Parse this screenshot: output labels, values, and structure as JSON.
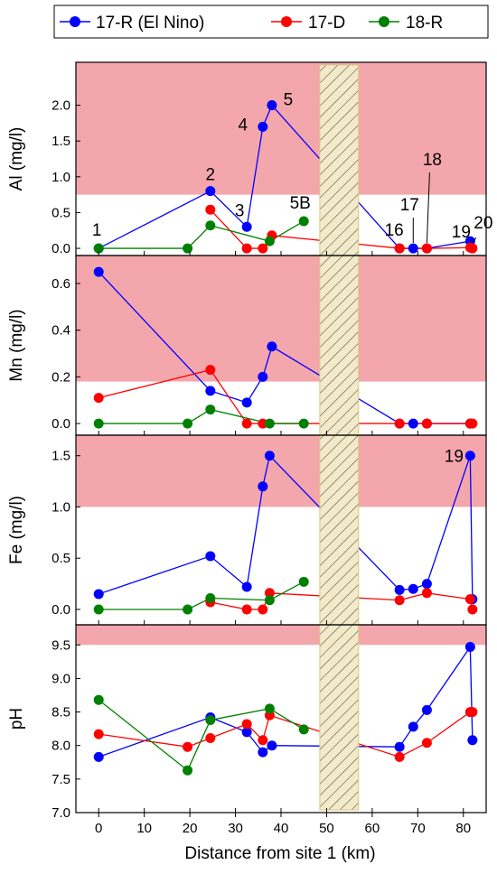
{
  "legend": {
    "items": [
      {
        "label": "17-R (El Nino)",
        "color": "#0000ff"
      },
      {
        "label": "17-D",
        "color": "#ff0000"
      },
      {
        "label": "18-R",
        "color": "#008000"
      }
    ]
  },
  "colors": {
    "exceed_band": "#f4a6ad",
    "hatch_fill": "#f2eac8",
    "hatch_line": "#555555"
  },
  "x_axis": {
    "label": "Distance from site 1 (km)",
    "range": [
      -5,
      85
    ],
    "ticks": [
      0,
      10,
      20,
      30,
      40,
      50,
      60,
      70,
      80
    ],
    "tick_labels": [
      "0",
      "10",
      "20",
      "30",
      "40",
      "50",
      "60",
      "70",
      "80"
    ]
  },
  "hatched_region_km": [
    48.5,
    57
  ],
  "chart_data": [
    {
      "type": "line",
      "panel": "Al",
      "ylabel": "Al (mg/l)",
      "ylim": [
        -0.1,
        2.6
      ],
      "yticks": [
        0.0,
        0.5,
        1.0,
        1.5,
        2.0
      ],
      "ytick_labels": [
        "0.0",
        "0.5",
        "1.0",
        "1.5",
        "2.0"
      ],
      "threshold_band": [
        0.75,
        2.6
      ],
      "series": [
        {
          "name": "17-R (El Nino)",
          "color": "#0000ff",
          "x": [
            0,
            24.5,
            32.5,
            36,
            38,
            66,
            69,
            72,
            81.5
          ],
          "y": [
            0.0,
            0.8,
            0.3,
            1.7,
            2.0,
            0.0,
            0.0,
            0.0,
            0.1
          ]
        },
        {
          "name": "17-D",
          "color": "#ff0000",
          "x": [
            24.5,
            32.5,
            36,
            38,
            66,
            72,
            81.5,
            82
          ],
          "y": [
            0.54,
            0.0,
            0.0,
            0.18,
            0.0,
            0.0,
            0.01,
            0.0
          ]
        },
        {
          "name": "18-R",
          "color": "#008000",
          "x": [
            0,
            19.5,
            24.5,
            37.5,
            45
          ],
          "y": [
            0.0,
            0.0,
            0.32,
            0.1,
            0.38
          ]
        }
      ],
      "annotations": [
        {
          "text": "1",
          "x": 0,
          "y": 0.0
        },
        {
          "text": "2",
          "x": 24.5,
          "y": 0.8
        },
        {
          "text": "3",
          "x": 32.5,
          "y": 0.3
        },
        {
          "text": "4",
          "x": 36,
          "y": 1.7
        },
        {
          "text": "5",
          "x": 38,
          "y": 2.0
        },
        {
          "text": "5B",
          "x": 45,
          "y": 0.38
        },
        {
          "text": "16",
          "x": 66,
          "y": 0.0
        },
        {
          "text": "17",
          "x": 69,
          "y": 0.0
        },
        {
          "text": "18",
          "x": 72,
          "y": 0.0
        },
        {
          "text": "19",
          "x": 81.5,
          "y": 0.1
        },
        {
          "text": "20",
          "x": 82,
          "y": 0.0
        }
      ]
    },
    {
      "type": "line",
      "panel": "Mn",
      "ylabel": "Mn (mg/l)",
      "ylim": [
        -0.05,
        0.72
      ],
      "yticks": [
        0.0,
        0.2,
        0.4,
        0.6
      ],
      "ytick_labels": [
        "0.0",
        "0.2",
        "0.4",
        "0.6"
      ],
      "threshold_band": [
        0.18,
        0.72
      ],
      "series": [
        {
          "name": "17-R (El Nino)",
          "color": "#0000ff",
          "x": [
            0,
            24.5,
            32.5,
            36,
            38,
            66,
            69,
            72,
            81.5
          ],
          "y": [
            0.65,
            0.14,
            0.09,
            0.2,
            0.33,
            0.0,
            0.0,
            0.0,
            0.0
          ]
        },
        {
          "name": "17-D",
          "color": "#ff0000",
          "x": [
            0,
            24.5,
            32.5,
            36,
            66,
            72,
            81.5,
            82
          ],
          "y": [
            0.11,
            0.23,
            0.0,
            0.0,
            0.0,
            0.0,
            0.0,
            0.0
          ]
        },
        {
          "name": "18-R",
          "color": "#008000",
          "x": [
            0,
            19.5,
            24.5,
            37.5,
            45
          ],
          "y": [
            0.0,
            0.0,
            0.06,
            0.0,
            0.0
          ]
        }
      ],
      "annotations": []
    },
    {
      "type": "line",
      "panel": "Fe",
      "ylabel": "Fe (mg/l)",
      "ylim": [
        -0.15,
        1.7
      ],
      "yticks": [
        0.0,
        0.5,
        1.0,
        1.5
      ],
      "ytick_labels": [
        "0.0",
        "0.5",
        "1.0",
        "1.5"
      ],
      "threshold_band": [
        1.0,
        1.7
      ],
      "series": [
        {
          "name": "17-R (El Nino)",
          "color": "#0000ff",
          "x": [
            0,
            24.5,
            32.5,
            36,
            37.5,
            66,
            69,
            72,
            81.5,
            82
          ],
          "y": [
            0.15,
            0.52,
            0.22,
            1.2,
            1.5,
            0.19,
            0.2,
            0.25,
            1.5,
            0.1
          ]
        },
        {
          "name": "17-D",
          "color": "#ff0000",
          "x": [
            24.5,
            32.5,
            36,
            37.5,
            66,
            72,
            81.5,
            82
          ],
          "y": [
            0.07,
            0.0,
            0.0,
            0.16,
            0.09,
            0.16,
            0.1,
            0.0
          ]
        },
        {
          "name": "18-R",
          "color": "#008000",
          "x": [
            0,
            19.5,
            24.5,
            37.5,
            45
          ],
          "y": [
            0.0,
            0.0,
            0.11,
            0.09,
            0.27
          ]
        }
      ],
      "annotations": [
        {
          "text": "19",
          "x": 81.5,
          "y": 1.5
        }
      ]
    },
    {
      "type": "line",
      "panel": "pH",
      "ylabel": "pH",
      "ylim": [
        7.0,
        9.8
      ],
      "yticks": [
        7.0,
        7.5,
        8.0,
        8.5,
        9.0,
        9.5
      ],
      "ytick_labels": [
        "7.0",
        "7.5",
        "8.0",
        "8.5",
        "9.0",
        "9.5"
      ],
      "threshold_band": [
        9.5,
        9.8
      ],
      "series": [
        {
          "name": "17-R (El Nino)",
          "color": "#0000ff",
          "x": [
            0,
            24.5,
            32.5,
            36,
            38,
            66,
            69,
            72,
            81.5,
            82
          ],
          "y": [
            7.83,
            8.42,
            8.2,
            7.9,
            8.0,
            7.98,
            8.28,
            8.53,
            9.47,
            8.08
          ]
        },
        {
          "name": "17-D",
          "color": "#ff0000",
          "x": [
            0,
            19.5,
            24.5,
            32.5,
            36,
            37.5,
            66,
            72,
            81.5,
            82
          ],
          "y": [
            8.17,
            7.98,
            8.11,
            8.32,
            8.08,
            8.45,
            7.83,
            8.04,
            8.5,
            8.5
          ]
        },
        {
          "name": "18-R",
          "color": "#008000",
          "x": [
            0,
            19.5,
            24.5,
            37.5,
            45
          ],
          "y": [
            8.68,
            7.63,
            8.38,
            8.55,
            8.24
          ]
        }
      ],
      "annotations": []
    }
  ]
}
